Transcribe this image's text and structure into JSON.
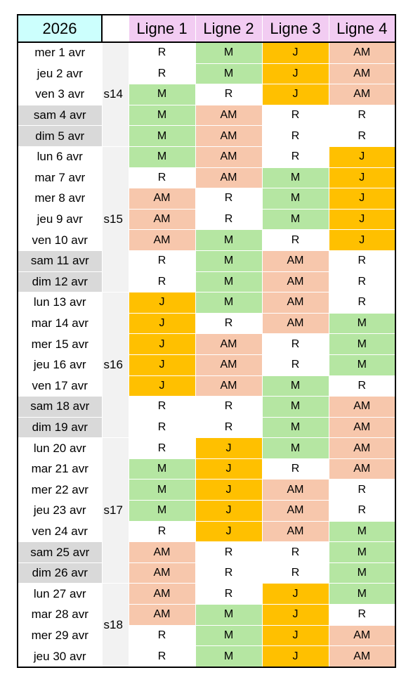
{
  "header": {
    "year": "2026",
    "columns": [
      "Ligne 1",
      "Ligne 2",
      "Ligne 3",
      "Ligne 4"
    ]
  },
  "fills": {
    "R": "#ffffff",
    "M": "#b5e6a2",
    "J": "#ffc000",
    "AM": "#f7c7ac"
  },
  "weeks": [
    {
      "label": "s14",
      "days": [
        {
          "date": "mer 1 avr",
          "weekend": false,
          "cells": [
            "R",
            "M",
            "J",
            "AM"
          ]
        },
        {
          "date": "jeu 2 avr",
          "weekend": false,
          "cells": [
            "R",
            "M",
            "J",
            "AM"
          ]
        },
        {
          "date": "ven 3 avr",
          "weekend": false,
          "cells": [
            "M",
            "R",
            "J",
            "AM"
          ]
        },
        {
          "date": "sam 4 avr",
          "weekend": true,
          "cells": [
            "M",
            "AM",
            "R",
            "R"
          ]
        },
        {
          "date": "dim 5 avr",
          "weekend": true,
          "cells": [
            "M",
            "AM",
            "R",
            "R"
          ]
        }
      ]
    },
    {
      "label": "s15",
      "days": [
        {
          "date": "lun 6 avr",
          "weekend": false,
          "cells": [
            "M",
            "AM",
            "R",
            "J"
          ]
        },
        {
          "date": "mar 7 avr",
          "weekend": false,
          "cells": [
            "R",
            "AM",
            "M",
            "J"
          ]
        },
        {
          "date": "mer 8 avr",
          "weekend": false,
          "cells": [
            "AM",
            "R",
            "M",
            "J"
          ]
        },
        {
          "date": "jeu 9 avr",
          "weekend": false,
          "cells": [
            "AM",
            "R",
            "M",
            "J"
          ]
        },
        {
          "date": "ven 10 avr",
          "weekend": false,
          "cells": [
            "AM",
            "M",
            "R",
            "J"
          ]
        },
        {
          "date": "sam 11 avr",
          "weekend": true,
          "cells": [
            "R",
            "M",
            "AM",
            "R"
          ]
        },
        {
          "date": "dim 12 avr",
          "weekend": true,
          "cells": [
            "R",
            "M",
            "AM",
            "R"
          ]
        }
      ]
    },
    {
      "label": "s16",
      "days": [
        {
          "date": "lun 13 avr",
          "weekend": false,
          "cells": [
            "J",
            "M",
            "AM",
            "R"
          ]
        },
        {
          "date": "mar 14 avr",
          "weekend": false,
          "cells": [
            "J",
            "R",
            "AM",
            "M"
          ]
        },
        {
          "date": "mer 15 avr",
          "weekend": false,
          "cells": [
            "J",
            "AM",
            "R",
            "M"
          ]
        },
        {
          "date": "jeu 16 avr",
          "weekend": false,
          "cells": [
            "J",
            "AM",
            "R",
            "M"
          ]
        },
        {
          "date": "ven 17 avr",
          "weekend": false,
          "cells": [
            "J",
            "AM",
            "M",
            "R"
          ]
        },
        {
          "date": "sam 18 avr",
          "weekend": true,
          "cells": [
            "R",
            "R",
            "M",
            "AM"
          ]
        },
        {
          "date": "dim 19 avr",
          "weekend": true,
          "cells": [
            "R",
            "R",
            "M",
            "AM"
          ]
        }
      ]
    },
    {
      "label": "s17",
      "days": [
        {
          "date": "lun 20 avr",
          "weekend": false,
          "cells": [
            "R",
            "J",
            "M",
            "AM"
          ]
        },
        {
          "date": "mar 21 avr",
          "weekend": false,
          "cells": [
            "M",
            "J",
            "R",
            "AM"
          ]
        },
        {
          "date": "mer 22 avr",
          "weekend": false,
          "cells": [
            "M",
            "J",
            "AM",
            "R"
          ]
        },
        {
          "date": "jeu 23 avr",
          "weekend": false,
          "cells": [
            "M",
            "J",
            "AM",
            "R"
          ]
        },
        {
          "date": "ven 24 avr",
          "weekend": false,
          "cells": [
            "R",
            "J",
            "AM",
            "M"
          ]
        },
        {
          "date": "sam 25 avr",
          "weekend": true,
          "cells": [
            "AM",
            "R",
            "R",
            "M"
          ]
        },
        {
          "date": "dim 26 avr",
          "weekend": true,
          "cells": [
            "AM",
            "R",
            "R",
            "M"
          ]
        }
      ]
    },
    {
      "label": "s18",
      "days": [
        {
          "date": "lun 27 avr",
          "weekend": false,
          "cells": [
            "AM",
            "R",
            "J",
            "M"
          ]
        },
        {
          "date": "mar 28 avr",
          "weekend": false,
          "cells": [
            "AM",
            "M",
            "J",
            "R"
          ]
        },
        {
          "date": "mer 29 avr",
          "weekend": false,
          "cells": [
            "R",
            "M",
            "J",
            "AM"
          ]
        },
        {
          "date": "jeu 30 avr",
          "weekend": false,
          "cells": [
            "R",
            "M",
            "J",
            "AM"
          ]
        }
      ]
    }
  ]
}
